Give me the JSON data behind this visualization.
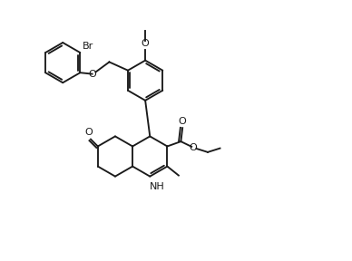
{
  "bg_color": "#ffffff",
  "line_color": "#1a1a1a",
  "line_width": 1.35,
  "font_size": 8.0,
  "figsize": [
    3.88,
    2.88
  ],
  "dpi": 100,
  "xlim": [
    0,
    10
  ],
  "ylim": [
    0,
    8
  ]
}
